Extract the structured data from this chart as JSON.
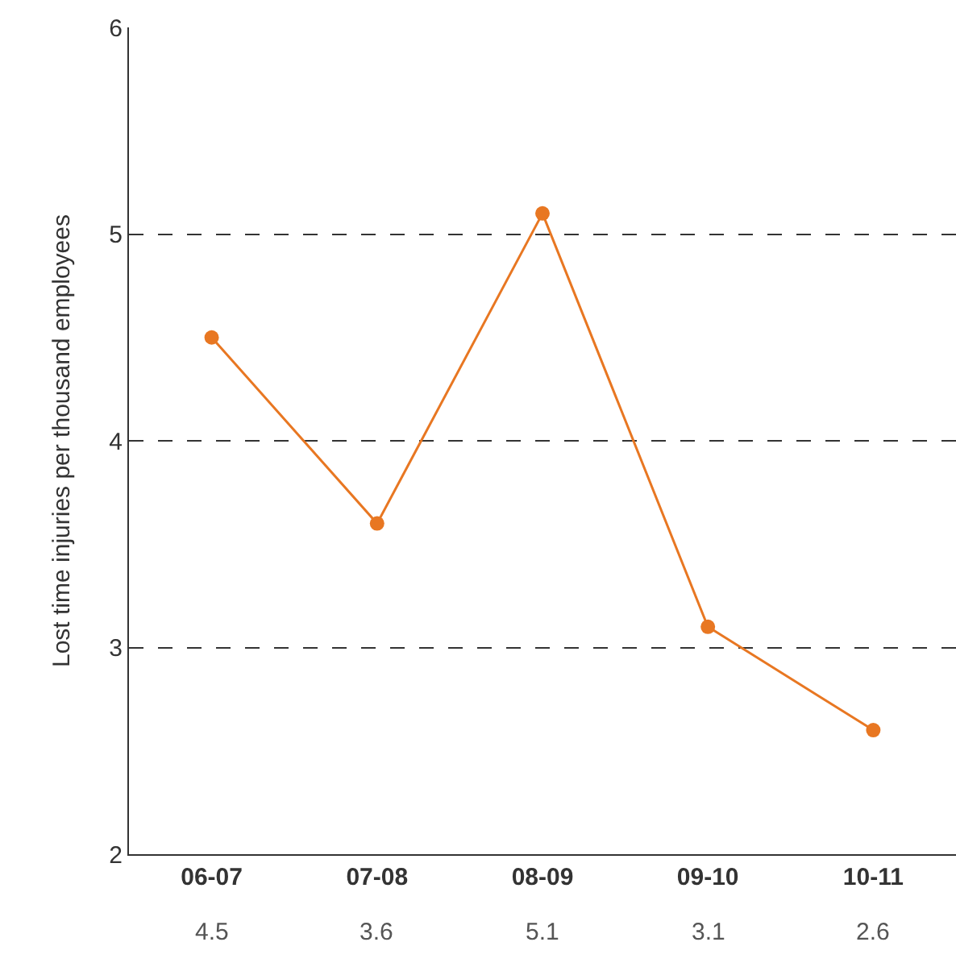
{
  "chart_data": {
    "type": "line",
    "ylabel": "Lost time injuries per thousand employees",
    "categories": [
      "06-07",
      "07-08",
      "08-09",
      "09-10",
      "10-11"
    ],
    "values": [
      4.5,
      3.6,
      5.1,
      3.1,
      2.6
    ],
    "color": "#e87722",
    "ylim": [
      2,
      6
    ],
    "yticks": [
      2,
      3,
      4,
      5,
      6
    ],
    "grid": "y",
    "marker": "circle",
    "line_style": "solid",
    "data_labels": true,
    "legend": false
  }
}
